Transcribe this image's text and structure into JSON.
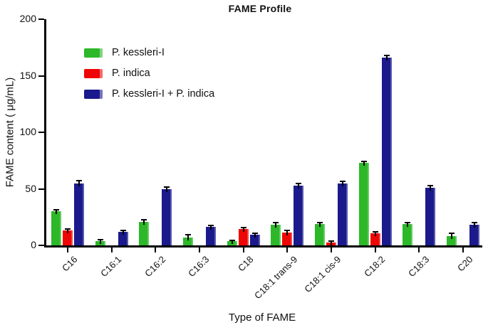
{
  "page": {
    "background": "#ffffff"
  },
  "chart_data": {
    "type": "bar",
    "title": "FAME Profile",
    "xlabel": "Type of FAME",
    "ylabel": "FAME content ( μg/mL)",
    "ylim": [
      0,
      200
    ],
    "yticks": [
      0,
      50,
      100,
      150,
      200
    ],
    "grid": false,
    "error_bars": true,
    "legend_position": "upper-left-inside",
    "categories": [
      "C16",
      "C16:1",
      "C16:2",
      "C16:3",
      "C18",
      "C18:1 trans-9",
      "C18:1 cis-9",
      "C18:2",
      "C18:3",
      "C20"
    ],
    "series": [
      {
        "name": "P. kessleri-I",
        "color": "#2cb828",
        "values": [
          30,
          4,
          21,
          7,
          3.5,
          18,
          19,
          73,
          19,
          8.5
        ],
        "errors": [
          1,
          0.6,
          0.8,
          1.8,
          0.4,
          1.5,
          0.8,
          0.8,
          0.8,
          1.5
        ]
      },
      {
        "name": "P. indica",
        "color": "#ee0505",
        "values": [
          13,
          0,
          0,
          0,
          14.5,
          11.5,
          2.5,
          10.5,
          0,
          0
        ],
        "errors": [
          0.7,
          0,
          0,
          0,
          0.6,
          1.2,
          0.8,
          0.8,
          0,
          0
        ]
      },
      {
        "name": "P. kessleri-I + P. indica",
        "color": "#1a1a8c",
        "values": [
          55,
          12,
          50,
          16.5,
          9.5,
          53,
          55,
          166,
          51,
          18.5
        ],
        "errors": [
          1.5,
          0.8,
          0.8,
          0.8,
          0.8,
          1.2,
          1,
          1.5,
          1.2,
          1
        ]
      }
    ],
    "axis_color": "#000000",
    "text_color": "#111111"
  }
}
